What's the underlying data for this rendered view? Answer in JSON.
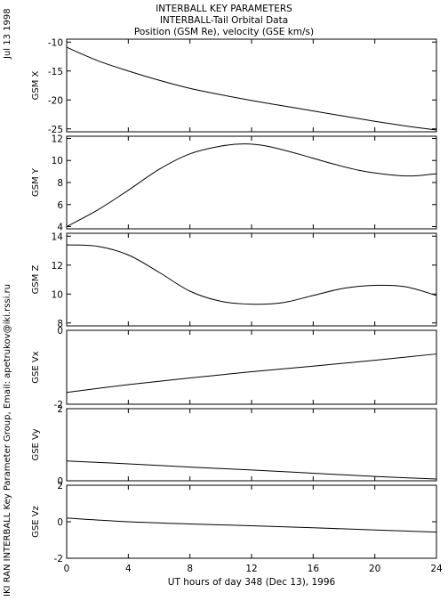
{
  "header": {
    "line1": "INTERBALL KEY PARAMETERS",
    "line2": "INTERBALL-Tail Orbital Data",
    "line3": "Position (GSM Re), velocity (GSE km/s)"
  },
  "side": {
    "date": "Jul 13 1998",
    "credit": "IKI RAN INTERBALL Key Parameter Group, Email: apetrukov@iki.rssi.ru"
  },
  "chart_data": {
    "type": "line",
    "xlabel": "UT hours of day 348 (Dec 13), 1996",
    "xlim": [
      0,
      24
    ],
    "xticks": [
      0,
      4,
      8,
      12,
      16,
      20,
      24
    ],
    "panels": [
      {
        "ylabel": "GSM X",
        "ylim": [
          -25.5,
          -9.5
        ],
        "yticks": [
          -10,
          -15,
          -20,
          -25
        ],
        "x": [
          0,
          2,
          4,
          6,
          8,
          10,
          12,
          14,
          16,
          18,
          20,
          22,
          24
        ],
        "values": [
          -10.9,
          -13.2,
          -15.0,
          -16.6,
          -18.0,
          -19.1,
          -20.1,
          -21.0,
          -21.9,
          -22.8,
          -23.7,
          -24.5,
          -25.2
        ]
      },
      {
        "ylabel": "GSM Y",
        "ylim": [
          3.8,
          12.2
        ],
        "yticks": [
          4,
          6,
          8,
          10,
          12
        ],
        "x": [
          0,
          2,
          4,
          6,
          8,
          10,
          11.5,
          13,
          15,
          17,
          19,
          21,
          22.5,
          24
        ],
        "values": [
          4.0,
          5.5,
          7.3,
          9.2,
          10.6,
          11.3,
          11.5,
          11.3,
          10.6,
          9.8,
          9.1,
          8.7,
          8.6,
          8.8
        ]
      },
      {
        "ylabel": "GSM Z",
        "ylim": [
          7.8,
          14.2
        ],
        "yticks": [
          8,
          10,
          12,
          14
        ],
        "x": [
          0,
          2,
          4,
          6,
          8,
          10,
          12,
          14,
          16,
          18,
          20,
          22,
          24
        ],
        "values": [
          13.4,
          13.3,
          12.7,
          11.5,
          10.2,
          9.5,
          9.3,
          9.4,
          9.9,
          10.4,
          10.6,
          10.5,
          9.9
        ]
      },
      {
        "ylabel": "GSE Vx",
        "ylim": [
          -2,
          0
        ],
        "yticks": [
          0,
          -2
        ],
        "x": [
          0,
          4,
          8,
          12,
          16,
          20,
          24
        ],
        "values": [
          -1.68,
          -1.47,
          -1.29,
          -1.12,
          -0.97,
          -0.81,
          -0.64
        ]
      },
      {
        "ylabel": "GSE Vy",
        "ylim": [
          0,
          2
        ],
        "yticks": [
          2,
          0
        ],
        "x": [
          0,
          4,
          8,
          12,
          16,
          20,
          24
        ],
        "values": [
          0.55,
          0.47,
          0.38,
          0.3,
          0.21,
          0.12,
          0.05
        ]
      },
      {
        "ylabel": "GSE Vz",
        "ylim": [
          -2,
          2
        ],
        "yticks": [
          2,
          0,
          -2
        ],
        "x": [
          0,
          4,
          8,
          12,
          16,
          20,
          24
        ],
        "values": [
          0.2,
          0.0,
          -0.12,
          -0.22,
          -0.33,
          -0.45,
          -0.57
        ]
      }
    ]
  }
}
